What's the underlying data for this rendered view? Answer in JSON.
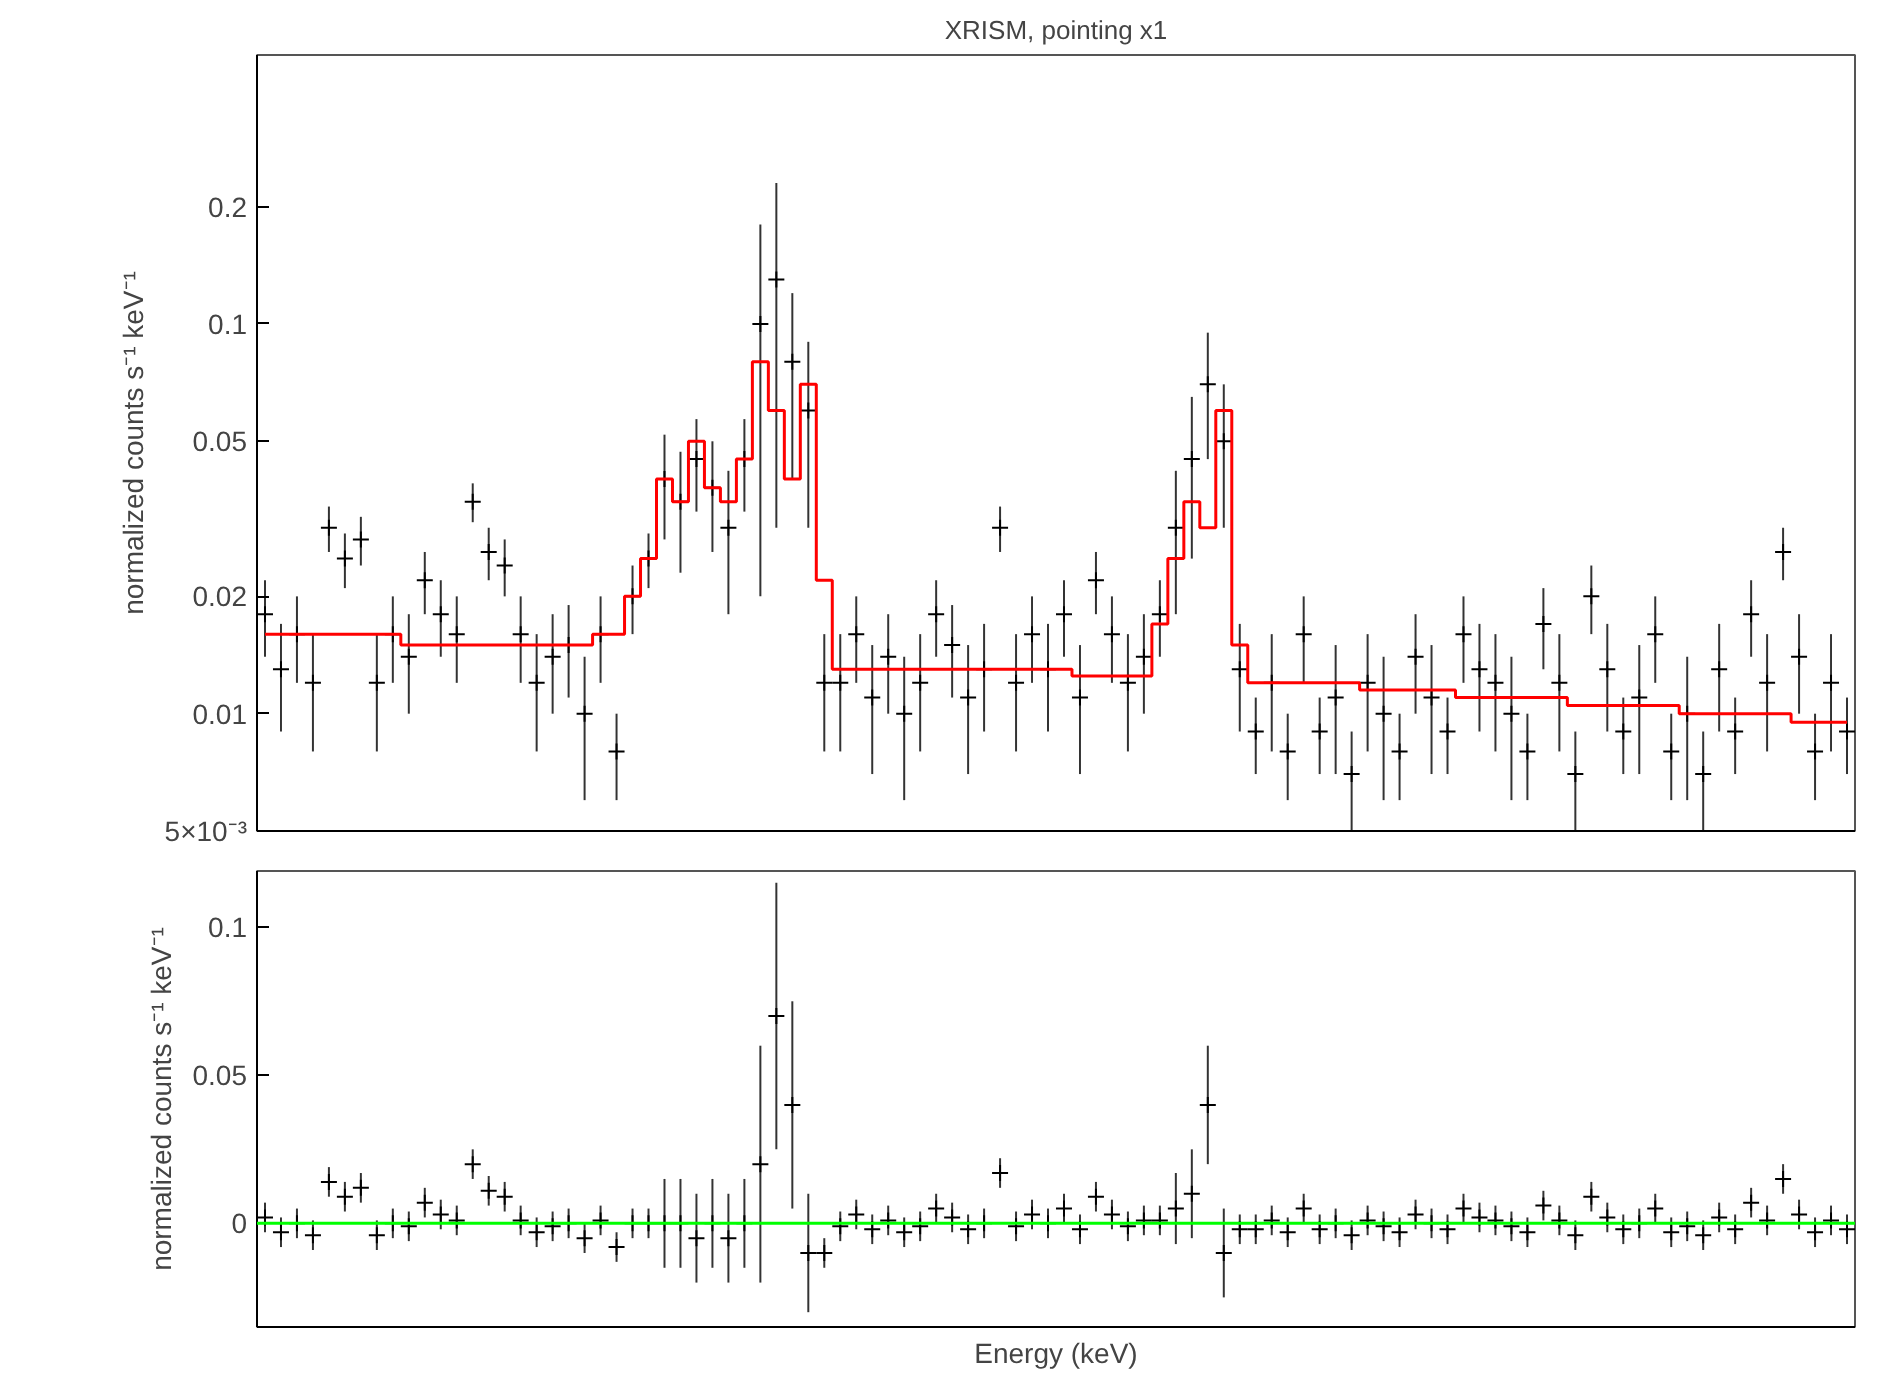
{
  "chart_data": [
    {
      "type": "scatter",
      "title": "XRISM, pointing x1",
      "ylabel": "normalized counts s⁻¹ keV⁻¹",
      "log": "y",
      "ylim": [
        0.005,
        0.49
      ],
      "yticks": [
        {
          "value": 0.005,
          "label": "5×10⁻³"
        },
        0.01,
        0.02,
        0.05,
        0.1,
        0.2
      ],
      "tick_labels": "y",
      "categories": [
        null,
        null,
        null,
        null,
        null,
        null,
        null,
        null,
        null,
        null,
        null,
        null,
        null,
        null,
        null,
        null,
        null,
        null,
        null,
        null,
        null,
        null,
        null,
        null,
        null,
        null,
        null,
        null,
        null,
        null,
        null,
        null,
        null,
        null,
        null,
        null,
        null,
        null,
        null,
        null,
        null,
        null,
        null,
        null,
        null,
        null,
        null,
        null,
        null,
        null,
        null,
        null,
        null,
        null,
        null,
        null,
        null,
        null,
        null,
        null,
        null,
        null,
        null,
        null,
        null,
        null,
        null,
        null,
        null,
        null,
        null,
        null,
        null,
        null,
        null,
        null,
        null,
        null,
        null,
        null,
        null,
        null,
        null,
        null,
        null,
        null,
        null,
        null,
        null,
        null,
        null,
        null,
        null,
        null,
        null,
        null,
        null,
        null,
        null,
        null
      ],
      "series": [
        {
          "color": "#000000",
          "marker": "cross",
          "values": [
            0.018,
            0.013,
            0.016,
            0.012,
            0.03,
            0.025,
            0.028,
            0.012,
            0.016,
            0.014,
            0.022,
            0.018,
            0.016,
            0.035,
            0.026,
            0.024,
            0.016,
            0.012,
            0.014,
            0.015,
            0.01,
            0.016,
            0.008,
            0.02,
            0.025,
            0.04,
            0.035,
            0.045,
            0.038,
            0.03,
            0.045,
            0.1,
            0.13,
            0.08,
            0.06,
            0.012,
            0.012,
            0.016,
            0.011,
            0.014,
            0.01,
            0.012,
            0.018,
            0.015,
            0.011,
            0.013,
            0.03,
            0.012,
            0.016,
            0.013,
            0.018,
            0.011,
            0.022,
            0.016,
            0.012,
            0.014,
            0.018,
            0.03,
            0.045,
            0.07,
            0.05,
            0.013,
            0.009,
            0.012,
            0.008,
            0.016,
            0.009,
            0.011,
            0.007,
            0.012,
            0.01,
            0.008,
            0.014,
            0.011,
            0.009,
            0.016,
            0.013,
            0.012,
            0.01,
            0.008,
            0.017,
            0.012,
            0.007,
            0.02,
            0.013,
            0.009,
            0.011,
            0.016,
            0.008,
            0.01,
            0.007,
            0.013,
            0.009,
            0.018,
            0.012,
            0.026,
            0.014,
            0.008,
            0.012,
            0.009
          ],
          "errors": [
            0.004,
            0.004,
            0.004,
            0.004,
            0.004,
            0.004,
            0.004,
            0.004,
            0.004,
            0.004,
            0.004,
            0.004,
            0.004,
            0.004,
            0.004,
            0.004,
            0.004,
            0.004,
            0.004,
            0.004,
            0.004,
            0.004,
            0.002,
            0.004,
            0.004,
            0.012,
            0.012,
            0.012,
            0.012,
            0.012,
            0.012,
            0.08,
            0.1,
            0.04,
            0.03,
            0.004,
            0.004,
            0.004,
            0.004,
            0.004,
            0.004,
            0.004,
            0.004,
            0.004,
            0.004,
            0.004,
            0.004,
            0.004,
            0.004,
            0.004,
            0.004,
            0.004,
            0.004,
            0.004,
            0.004,
            0.004,
            0.004,
            0.012,
            0.02,
            0.025,
            0.02,
            0.004,
            0.002,
            0.004,
            0.002,
            0.004,
            0.002,
            0.004,
            0.002,
            0.004,
            0.004,
            0.002,
            0.004,
            0.004,
            0.002,
            0.004,
            0.004,
            0.004,
            0.004,
            0.002,
            0.004,
            0.004,
            0.002,
            0.004,
            0.004,
            0.002,
            0.004,
            0.004,
            0.002,
            0.004,
            0.002,
            0.004,
            0.002,
            0.004,
            0.004,
            0.004,
            0.004,
            0.002,
            0.004,
            0.002
          ]
        },
        {
          "type": "step",
          "color": "#ff0000",
          "values": [
            0.016,
            0.016,
            0.016,
            0.016,
            0.016,
            0.016,
            0.016,
            0.016,
            0.016,
            0.015,
            0.015,
            0.015,
            0.015,
            0.015,
            0.015,
            0.015,
            0.015,
            0.015,
            0.015,
            0.015,
            0.015,
            0.016,
            0.016,
            0.02,
            0.025,
            0.04,
            0.035,
            0.05,
            0.038,
            0.035,
            0.045,
            0.08,
            0.06,
            0.04,
            0.07,
            0.022,
            0.013,
            0.013,
            0.013,
            0.013,
            0.013,
            0.013,
            0.013,
            0.013,
            0.013,
            0.013,
            0.013,
            0.013,
            0.013,
            0.013,
            0.013,
            0.0125,
            0.0125,
            0.0125,
            0.0125,
            0.0125,
            0.017,
            0.025,
            0.035,
            0.03,
            0.06,
            0.015,
            0.012,
            0.012,
            0.012,
            0.012,
            0.012,
            0.012,
            0.012,
            0.0115,
            0.0115,
            0.0115,
            0.0115,
            0.0115,
            0.0115,
            0.011,
            0.011,
            0.011,
            0.011,
            0.011,
            0.011,
            0.011,
            0.0105,
            0.0105,
            0.0105,
            0.0105,
            0.0105,
            0.0105,
            0.0105,
            0.01,
            0.01,
            0.01,
            0.01,
            0.01,
            0.01,
            0.01,
            0.0095,
            0.0095,
            0.0095,
            0.0095
          ]
        }
      ]
    },
    {
      "type": "scatter",
      "xlabel": "Energy (keV)",
      "ylabel": "normalized counts s⁻¹ keV⁻¹",
      "ylim": [
        -0.035,
        0.119
      ],
      "yticks": [
        0,
        0.05,
        0.1
      ],
      "tick_labels": "y",
      "categories": [
        null,
        null,
        null,
        null,
        null,
        null,
        null,
        null,
        null,
        null,
        null,
        null,
        null,
        null,
        null,
        null,
        null,
        null,
        null,
        null,
        null,
        null,
        null,
        null,
        null,
        null,
        null,
        null,
        null,
        null,
        null,
        null,
        null,
        null,
        null,
        null,
        null,
        null,
        null,
        null,
        null,
        null,
        null,
        null,
        null,
        null,
        null,
        null,
        null,
        null,
        null,
        null,
        null,
        null,
        null,
        null,
        null,
        null,
        null,
        null,
        null,
        null,
        null,
        null,
        null,
        null,
        null,
        null,
        null,
        null,
        null,
        null,
        null,
        null,
        null,
        null,
        null,
        null,
        null,
        null,
        null,
        null,
        null,
        null,
        null,
        null,
        null,
        null,
        null,
        null,
        null,
        null,
        null,
        null,
        null,
        null,
        null,
        null,
        null,
        null
      ],
      "ref_lines": [
        {
          "axis": "y",
          "value": 0,
          "color": "#00ff00"
        }
      ],
      "series": [
        {
          "color": "#000000",
          "marker": "cross",
          "values": [
            0.002,
            -0.003,
            0,
            -0.004,
            0.014,
            0.009,
            0.012,
            -0.004,
            0,
            -0.001,
            0.007,
            0.003,
            0.001,
            0.02,
            0.011,
            0.009,
            0.001,
            -0.003,
            -0.001,
            0,
            -0.005,
            0.001,
            -0.008,
            0,
            0,
            0,
            0,
            -0.005,
            0,
            -0.005,
            0,
            0.02,
            0.07,
            0.04,
            -0.01,
            -0.01,
            -0.001,
            0.003,
            -0.002,
            0.001,
            -0.003,
            -0.001,
            0.005,
            0.002,
            -0.002,
            0,
            0.017,
            -0.001,
            0.003,
            0,
            0.005,
            -0.002,
            0.009,
            0.003,
            -0.001,
            0.001,
            0.001,
            0.005,
            0.01,
            0.04,
            -0.01,
            -0.002,
            -0.002,
            0.001,
            -0.003,
            0.005,
            -0.002,
            0,
            -0.004,
            0.001,
            -0.001,
            -0.003,
            0.003,
            0,
            -0.002,
            0.005,
            0.002,
            0.001,
            -0.001,
            -0.003,
            0.006,
            0.001,
            -0.004,
            0.009,
            0.002,
            -0.002,
            0,
            0.005,
            -0.003,
            -0.001,
            -0.004,
            0.002,
            -0.002,
            0.007,
            0.001,
            0.015,
            0.003,
            -0.003,
            0.001,
            -0.002
          ],
          "errors": [
            0.005,
            0.005,
            0.005,
            0.005,
            0.005,
            0.005,
            0.005,
            0.005,
            0.005,
            0.005,
            0.005,
            0.005,
            0.005,
            0.005,
            0.005,
            0.005,
            0.005,
            0.005,
            0.005,
            0.005,
            0.005,
            0.005,
            0.005,
            0.005,
            0.005,
            0.015,
            0.015,
            0.015,
            0.015,
            0.015,
            0.015,
            0.04,
            0.045,
            0.035,
            0.02,
            0.005,
            0.005,
            0.005,
            0.005,
            0.005,
            0.005,
            0.005,
            0.005,
            0.005,
            0.005,
            0.005,
            0.005,
            0.005,
            0.005,
            0.005,
            0.005,
            0.005,
            0.005,
            0.005,
            0.005,
            0.005,
            0.005,
            0.012,
            0.015,
            0.02,
            0.015,
            0.005,
            0.005,
            0.005,
            0.005,
            0.005,
            0.005,
            0.005,
            0.005,
            0.005,
            0.005,
            0.005,
            0.005,
            0.005,
            0.005,
            0.005,
            0.005,
            0.005,
            0.005,
            0.005,
            0.005,
            0.005,
            0.005,
            0.005,
            0.005,
            0.005,
            0.005,
            0.005,
            0.005,
            0.005,
            0.005,
            0.005,
            0.005,
            0.005,
            0.005,
            0.005,
            0.005,
            0.005,
            0.005,
            0.005
          ]
        }
      ]
    }
  ]
}
